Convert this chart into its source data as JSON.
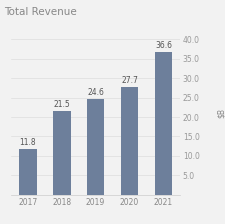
{
  "title": "Total Revenue",
  "categories": [
    "2017",
    "2018",
    "2019",
    "2020",
    "2021"
  ],
  "values": [
    11.8,
    21.5,
    24.6,
    27.7,
    36.6
  ],
  "bar_color": "#6d7f9b",
  "ylim": [
    0,
    42
  ],
  "yticks": [
    5.0,
    10.0,
    15.0,
    20.0,
    25.0,
    30.0,
    35.0,
    40.0
  ],
  "title_fontsize": 7.5,
  "label_fontsize": 5.5,
  "tick_fontsize": 5.5,
  "bar_label_fontsize": 5.5,
  "background_color": "#f2f2f2"
}
